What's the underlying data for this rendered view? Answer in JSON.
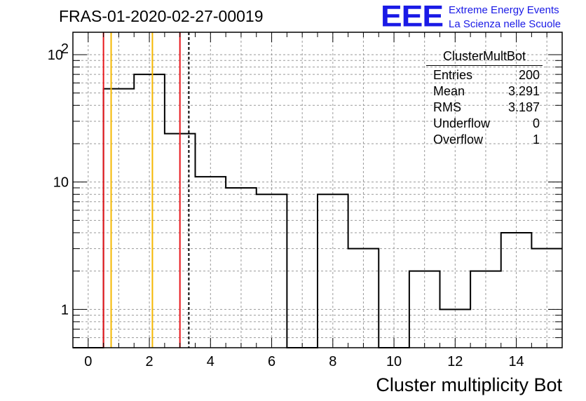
{
  "title": "FRAS-01-2020-02-27-00019",
  "logo": {
    "mark": "EEE",
    "line1": "Extreme Energy Events",
    "line2": "La Scienza nelle Scuole",
    "color": "#1a1ae6"
  },
  "stats": {
    "name": "ClusterMultBot",
    "rows": [
      {
        "label": "Entries",
        "value": "200"
      },
      {
        "label": "Mean",
        "value": "3.291"
      },
      {
        "label": "RMS",
        "value": "3.187"
      },
      {
        "label": "Underflow",
        "value": "0"
      },
      {
        "label": "Overflow",
        "value": "1"
      }
    ]
  },
  "chart_data": {
    "type": "histogram",
    "xlabel": "Cluster multiplicity Bot",
    "ylabel": "",
    "xlim": [
      -0.5,
      15.5
    ],
    "ylim": [
      0.5,
      150
    ],
    "log_y": true,
    "grid": true,
    "bin_edges": [
      -0.5,
      0.5,
      1.5,
      2.5,
      3.5,
      4.5,
      5.5,
      6.5,
      7.5,
      8.5,
      9.5,
      10.5,
      11.5,
      12.5,
      13.5,
      14.5,
      15.5
    ],
    "counts": [
      0,
      54,
      70,
      24,
      11,
      9,
      8,
      0,
      8,
      3,
      0,
      2,
      1,
      2,
      4,
      3
    ],
    "x_ticks": [
      0,
      2,
      4,
      6,
      8,
      10,
      12,
      14
    ],
    "y_ticks": [
      {
        "value": 1,
        "label": "1"
      },
      {
        "value": 10,
        "label": "10"
      },
      {
        "value": 100,
        "label": "10",
        "exponent": "2"
      }
    ],
    "markers": [
      {
        "x": 0.5,
        "color": "#e8161b",
        "style": "solid"
      },
      {
        "x": 0.75,
        "color": "#f5b800",
        "style": "solid"
      },
      {
        "x": 2.1,
        "color": "#f5b800",
        "style": "solid"
      },
      {
        "x": 3.0,
        "color": "#e8161b",
        "style": "solid"
      },
      {
        "x": 3.291,
        "color": "#000000",
        "style": "dashed"
      }
    ]
  }
}
